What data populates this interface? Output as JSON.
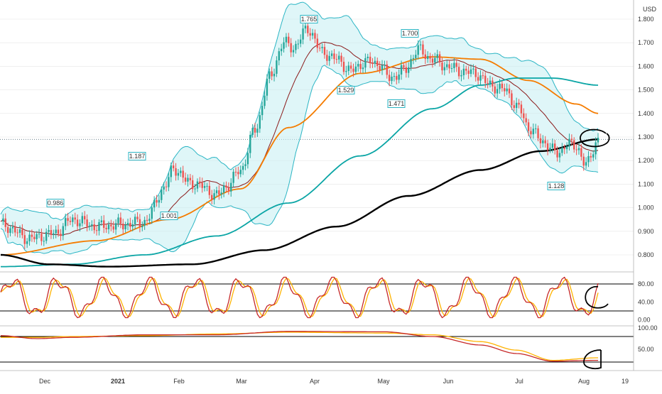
{
  "currency": "USD",
  "colors": {
    "up": "#26a69a",
    "down": "#ef5350",
    "bb_line": "#2bb5c4",
    "bb_fill": "#c5eef2",
    "ma20": "#8b1a1a",
    "ma50": "#f57c00",
    "ma100": "#0aa5a5",
    "ma200": "#000000",
    "stoch_k": "#c62828",
    "stoch_d": "#ffb300",
    "hline": "#000000",
    "grid": "#e6e6e6",
    "annotation": "#000000"
  },
  "chart_data": [
    {
      "type": "candlestick",
      "currency": "USD",
      "ylim": [
        0.75,
        1.85
      ],
      "yticks": [
        "1.800",
        "1.700",
        "1.600",
        "1.500",
        "1.400",
        "1.300",
        "1.200",
        "1.100",
        "1.000",
        "0.900",
        "0.800"
      ],
      "x_labels": [
        "Dec",
        "2021",
        "Feb",
        "Mar",
        "Apr",
        "May",
        "Jun",
        "Jul",
        "Aug",
        "19"
      ],
      "last_price": 1.29,
      "callouts": [
        "0.986",
        "1.187",
        "1.001",
        "1.765",
        "1.529",
        "1.471",
        "1.700",
        "1.128"
      ],
      "series": [
        {
          "name": "Bollinger Bands",
          "type": "band"
        },
        {
          "type": "line",
          "label": "20-period MA"
        },
        {
          "type": "line",
          "label": "50-period MA"
        },
        {
          "type": "line",
          "label": "100-period MA"
        },
        {
          "type": "line",
          "label": "200-period MA"
        }
      ]
    },
    {
      "type": "line",
      "panel": "oscillator-1",
      "ylim": [
        0,
        100
      ],
      "yticks": [
        "80.00",
        "40.00",
        "0.00"
      ],
      "hlines": [
        80,
        20
      ]
    },
    {
      "type": "line",
      "panel": "oscillator-2",
      "ylim": [
        0,
        100
      ],
      "yticks": [
        "100.00",
        "50.00"
      ],
      "hlines": [
        80,
        20
      ]
    }
  ]
}
